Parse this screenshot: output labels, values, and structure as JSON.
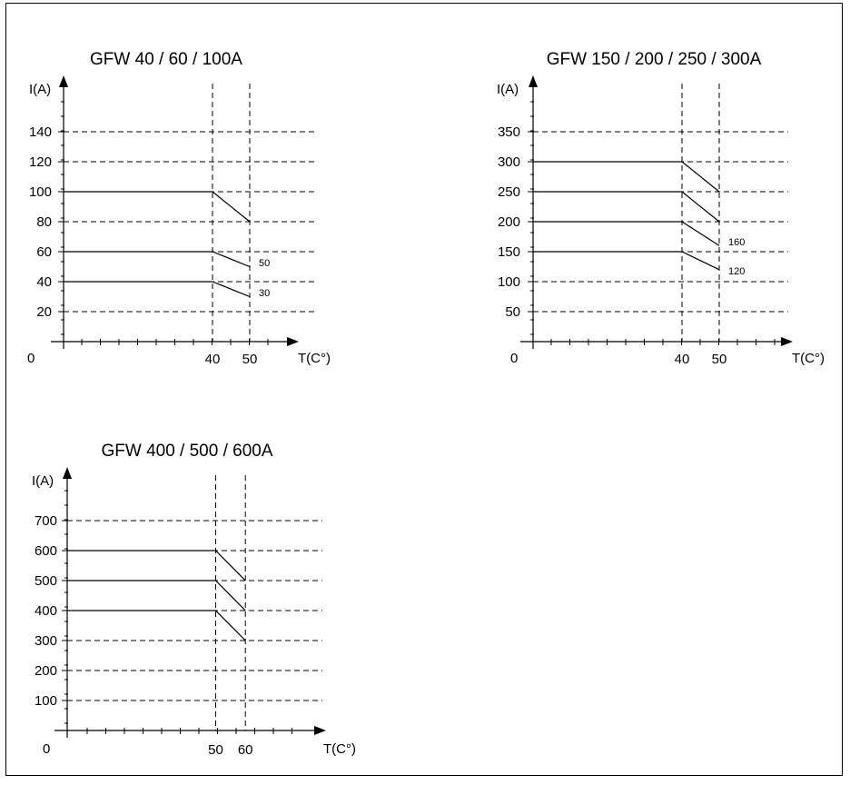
{
  "charts": [
    {
      "id": "c1",
      "title": "GFW  40 / 60 / 100A",
      "y_axis_label": "I(A)",
      "x_axis_label": "T(C°)",
      "origin_label": "0",
      "y_ticks": [
        "20",
        "40",
        "60",
        "80",
        "100",
        "120",
        "140"
      ],
      "x_ticks": [
        "40",
        "50"
      ],
      "annotations": [
        "50",
        "30"
      ]
    },
    {
      "id": "c2",
      "title": "GFW  150 / 200 / 250 / 300A",
      "y_axis_label": "I(A)",
      "x_axis_label": "T(C°)",
      "origin_label": "0",
      "y_ticks": [
        "50",
        "100",
        "150",
        "200",
        "250",
        "300",
        "350"
      ],
      "x_ticks": [
        "40",
        "50"
      ],
      "annotations": [
        "160",
        "120"
      ]
    },
    {
      "id": "c3",
      "title": "GFW  400 / 500 / 600A",
      "y_axis_label": "I(A)",
      "x_axis_label": "T(C°)",
      "origin_label": "0",
      "y_ticks": [
        "100",
        "200",
        "300",
        "400",
        "500",
        "600",
        "700"
      ],
      "x_ticks": [
        "50",
        "60"
      ],
      "annotations": []
    }
  ],
  "chart_data": [
    {
      "type": "line",
      "title": "GFW  40 / 60 / 100A",
      "xlabel": "T(C°)",
      "ylabel": "I(A)",
      "xlim": [
        0,
        50
      ],
      "ylim": [
        0,
        140
      ],
      "grid": true,
      "series": [
        {
          "x": [
            0,
            40,
            50
          ],
          "y": [
            100,
            100,
            80
          ]
        },
        {
          "x": [
            0,
            40,
            50
          ],
          "y": [
            60,
            60,
            50
          ]
        },
        {
          "x": [
            0,
            40,
            50
          ],
          "y": [
            40,
            40,
            30
          ]
        }
      ]
    },
    {
      "type": "line",
      "title": "GFW  150 / 200 / 250 / 300A",
      "xlabel": "T(C°)",
      "ylabel": "I(A)",
      "xlim": [
        0,
        50
      ],
      "ylim": [
        0,
        350
      ],
      "grid": true,
      "series": [
        {
          "x": [
            0,
            40,
            50
          ],
          "y": [
            300,
            300,
            250
          ]
        },
        {
          "x": [
            0,
            40,
            50
          ],
          "y": [
            250,
            250,
            200
          ]
        },
        {
          "x": [
            0,
            40,
            50
          ],
          "y": [
            200,
            200,
            160
          ]
        },
        {
          "x": [
            0,
            40,
            50
          ],
          "y": [
            150,
            150,
            120
          ]
        }
      ]
    },
    {
      "type": "line",
      "title": "GFW  400 / 500 / 600A",
      "xlabel": "T(C°)",
      "ylabel": "I(A)",
      "xlim": [
        0,
        60
      ],
      "ylim": [
        0,
        700
      ],
      "grid": true,
      "series": [
        {
          "x": [
            0,
            50,
            60
          ],
          "y": [
            600,
            600,
            500
          ]
        },
        {
          "x": [
            0,
            50,
            60
          ],
          "y": [
            500,
            500,
            400
          ]
        },
        {
          "x": [
            0,
            50,
            60
          ],
          "y": [
            400,
            400,
            300
          ]
        }
      ]
    }
  ]
}
